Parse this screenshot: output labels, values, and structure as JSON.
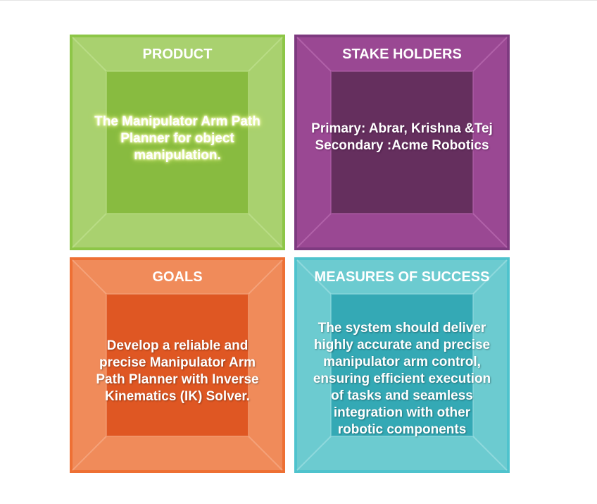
{
  "panels": [
    {
      "id": "product",
      "title": "PRODUCT",
      "body_lines": [
        "The Manipulator Arm Path",
        "Planner for object",
        "manipulation."
      ],
      "colors": {
        "border": "#8dc647",
        "outer": "#a9d16f",
        "inner": "#88bb40",
        "edge": "#b9dc86"
      }
    },
    {
      "id": "stake-holders",
      "title": "STAKE HOLDERS",
      "body_lines": [
        "Primary: Abrar, Krishna &Tej",
        "Secondary :Acme Robotics"
      ],
      "colors": {
        "border": "#7e3a80",
        "outer": "#9a4893",
        "inner": "#652f5e",
        "edge": "#b061a8"
      }
    },
    {
      "id": "goals",
      "title": "GOALS",
      "body_lines": [
        "Develop a reliable and",
        "precise Manipulator Arm",
        "Path Planner with Inverse",
        "Kinematics (IK) Solver."
      ],
      "colors": {
        "border": "#ee7034",
        "outer": "#f08b5a",
        "inner": "#df5723",
        "edge": "#f4a27a"
      }
    },
    {
      "id": "measures-of-success",
      "title": "MEASURES OF SUCCESS",
      "body_lines": [
        "The system should deliver",
        "highly accurate and precise",
        "manipulator arm control,",
        "ensuring efficient execution",
        "of tasks and seamless",
        "integration with other",
        "robotic components"
      ],
      "colors": {
        "border": "#4fc3cd",
        "outer": "#6ccbd0",
        "inner": "#34a9b5",
        "edge": "#8fd9dd"
      }
    }
  ]
}
